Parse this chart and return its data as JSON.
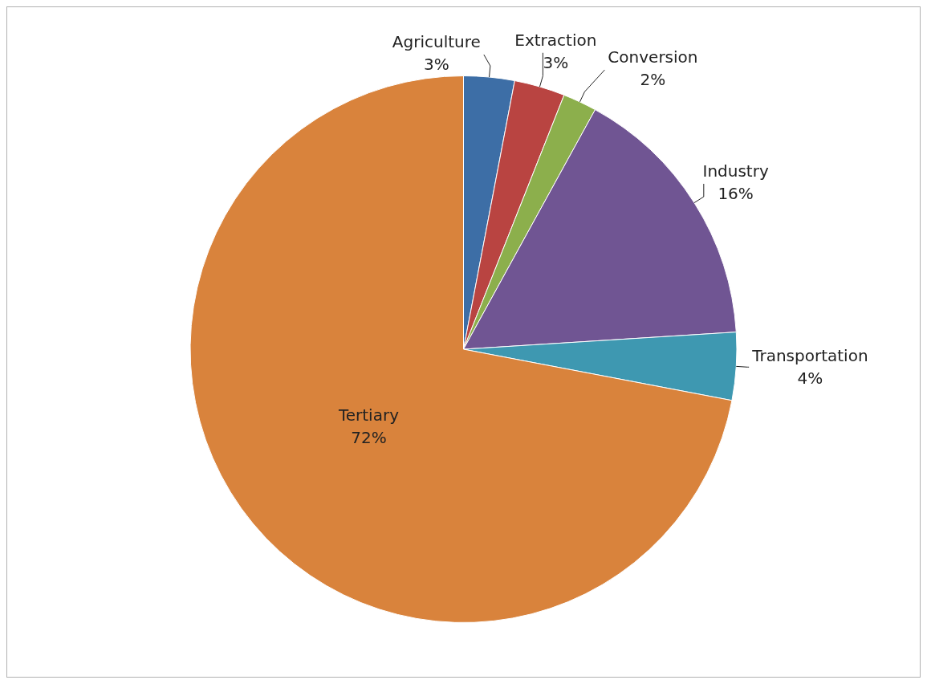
{
  "chart_data": {
    "type": "pie",
    "categories": [
      "Agriculture",
      "Extraction",
      "Conversion",
      "Industry",
      "Transportation",
      "Tertiary"
    ],
    "values": [
      3,
      3,
      2,
      16,
      4,
      72
    ],
    "value_labels": [
      "3%",
      "3%",
      "2%",
      "16%",
      "4%",
      "72%"
    ],
    "colors": [
      "#3d6ea6",
      "#b94441",
      "#8caf4c",
      "#705593",
      "#3e98b1",
      "#d9833c"
    ],
    "legend": false
  }
}
